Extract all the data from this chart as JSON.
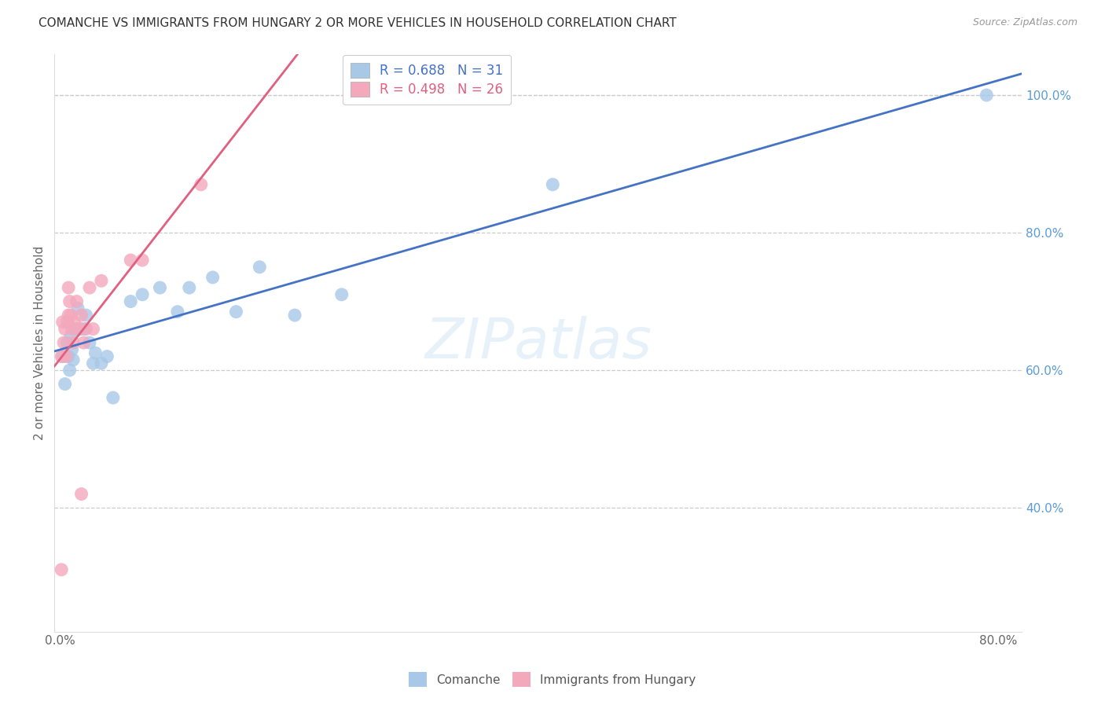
{
  "title": "COMANCHE VS IMMIGRANTS FROM HUNGARY 2 OR MORE VEHICLES IN HOUSEHOLD CORRELATION CHART",
  "source": "Source: ZipAtlas.com",
  "ylabel": "2 or more Vehicles in Household",
  "blue_R": 0.688,
  "blue_N": 31,
  "pink_R": 0.498,
  "pink_N": 26,
  "blue_color": "#a8c8e8",
  "pink_color": "#f4a8bc",
  "blue_line_color": "#4472c4",
  "pink_line_color": "#e06080",
  "right_ytick_vals": [
    0.4,
    0.6,
    0.8,
    1.0
  ],
  "right_yticklabels": [
    "40.0%",
    "60.0%",
    "80.0%",
    "100.0%"
  ],
  "xtick_positions": [
    0.0,
    0.1,
    0.2,
    0.3,
    0.4,
    0.5,
    0.6,
    0.7,
    0.8
  ],
  "xticklabels": [
    "0.0%",
    "",
    "",
    "",
    "",
    "",
    "",
    "",
    "80.0%"
  ],
  "xlim": [
    -0.005,
    0.82
  ],
  "ylim": [
    0.22,
    1.06
  ],
  "background_color": "#ffffff",
  "grid_color": "#cccccc",
  "blue_x": [
    0.002,
    0.004,
    0.006,
    0.007,
    0.008,
    0.009,
    0.01,
    0.011,
    0.013,
    0.015,
    0.017,
    0.02,
    0.022,
    0.025,
    0.028,
    0.03,
    0.035,
    0.04,
    0.045,
    0.06,
    0.07,
    0.085,
    0.1,
    0.11,
    0.13,
    0.15,
    0.17,
    0.2,
    0.24,
    0.42,
    0.79
  ],
  "blue_y": [
    0.62,
    0.58,
    0.64,
    0.62,
    0.6,
    0.65,
    0.63,
    0.615,
    0.66,
    0.69,
    0.66,
    0.66,
    0.68,
    0.64,
    0.61,
    0.625,
    0.61,
    0.62,
    0.56,
    0.7,
    0.71,
    0.72,
    0.685,
    0.72,
    0.735,
    0.685,
    0.75,
    0.68,
    0.71,
    0.87,
    1.0
  ],
  "pink_x": [
    0.001,
    0.002,
    0.003,
    0.004,
    0.005,
    0.006,
    0.007,
    0.007,
    0.008,
    0.009,
    0.01,
    0.011,
    0.012,
    0.014,
    0.016,
    0.018,
    0.02,
    0.022,
    0.025,
    0.028,
    0.035,
    0.06,
    0.07,
    0.12,
    0.018,
    0.001
  ],
  "pink_y": [
    0.62,
    0.67,
    0.64,
    0.66,
    0.62,
    0.67,
    0.68,
    0.72,
    0.7,
    0.68,
    0.66,
    0.64,
    0.67,
    0.7,
    0.66,
    0.68,
    0.64,
    0.66,
    0.72,
    0.66,
    0.73,
    0.76,
    0.76,
    0.87,
    0.42,
    0.31
  ]
}
